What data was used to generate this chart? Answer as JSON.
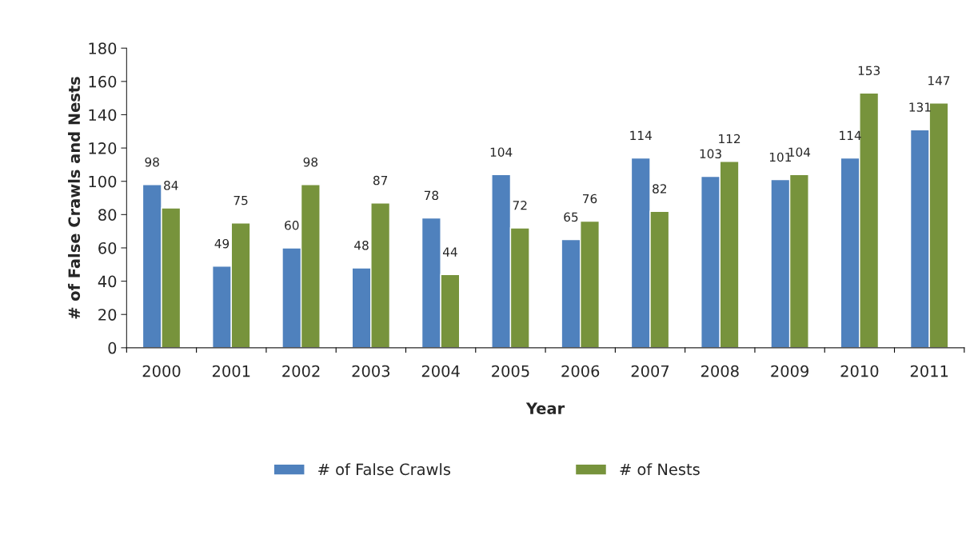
{
  "chart_data": {
    "type": "bar",
    "xlabel": "Year",
    "ylabel": "# of False Crawls and Nests",
    "categories": [
      "2000",
      "2001",
      "2002",
      "2003",
      "2004",
      "2005",
      "2006",
      "2007",
      "2008",
      "2009",
      "2010",
      "2011"
    ],
    "series": [
      {
        "name": "# of False Crawls",
        "color": "#4f81bd",
        "values": [
          98,
          49,
          60,
          48,
          78,
          104,
          65,
          114,
          103,
          101,
          114,
          131
        ]
      },
      {
        "name": "# of Nests",
        "color": "#77933c",
        "values": [
          84,
          75,
          98,
          87,
          44,
          72,
          76,
          82,
          112,
          104,
          153,
          147
        ]
      }
    ],
    "ylim": [
      0,
      180
    ],
    "yticks": [
      0,
      20,
      40,
      60,
      80,
      100,
      120,
      140,
      160,
      180
    ],
    "grid": false,
    "legend": "bottom",
    "data_labels": true
  }
}
